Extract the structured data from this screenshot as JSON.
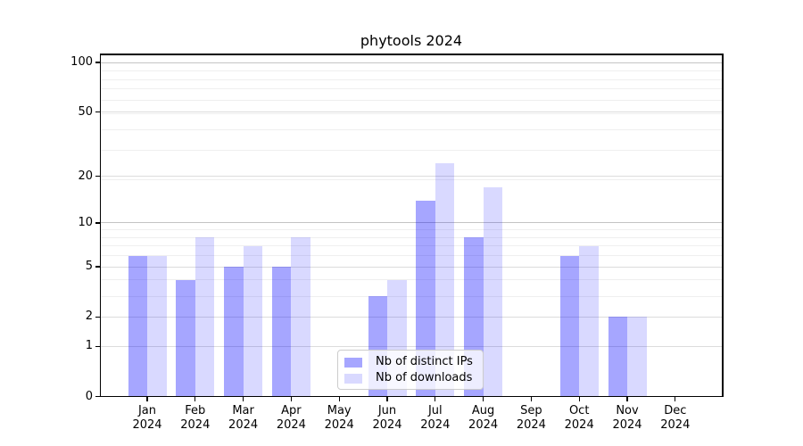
{
  "title": "phytools 2024",
  "chart_data": {
    "type": "bar",
    "title": "phytools 2024",
    "categories": [
      "Jan",
      "Feb",
      "Mar",
      "Apr",
      "May",
      "Jun",
      "Jul",
      "Aug",
      "Sep",
      "Oct",
      "Nov",
      "Dec"
    ],
    "year_label": "2024",
    "series": [
      {
        "name": "Nb of distinct IPs",
        "color": "rgba(0,0,255,0.35)",
        "slug": "distinct-ips",
        "values": [
          6,
          4,
          5,
          5,
          0,
          3,
          14,
          8,
          0,
          6,
          2,
          0
        ]
      },
      {
        "name": "Nb of downloads",
        "color": "rgba(0,0,255,0.15)",
        "slug": "downloads",
        "values": [
          6,
          8,
          7,
          8,
          0,
          4,
          24,
          17,
          0,
          7,
          2,
          0
        ]
      }
    ],
    "y_scale": "log10(1+v)",
    "y_ticks": [
      0,
      1,
      2,
      5,
      10,
      20,
      50,
      100
    ],
    "y_minor_gridlines": [
      1,
      2,
      3,
      4,
      5,
      6,
      7,
      8,
      9,
      19,
      29,
      39,
      49,
      59,
      69,
      79,
      89,
      99
    ],
    "ylim": [
      0,
      112
    ],
    "xlabel": "",
    "ylabel": "",
    "grid": true,
    "legend_position": "lower center",
    "colors": {
      "grid_minor": "#efefef",
      "grid_major": "#dcdcdc",
      "grid_decade": "#c4c4c4",
      "axis": "#000000",
      "text": "#000000",
      "background": "#ffffff"
    }
  },
  "legend": {
    "items": [
      "Nb of distinct IPs",
      "Nb of downloads"
    ]
  }
}
